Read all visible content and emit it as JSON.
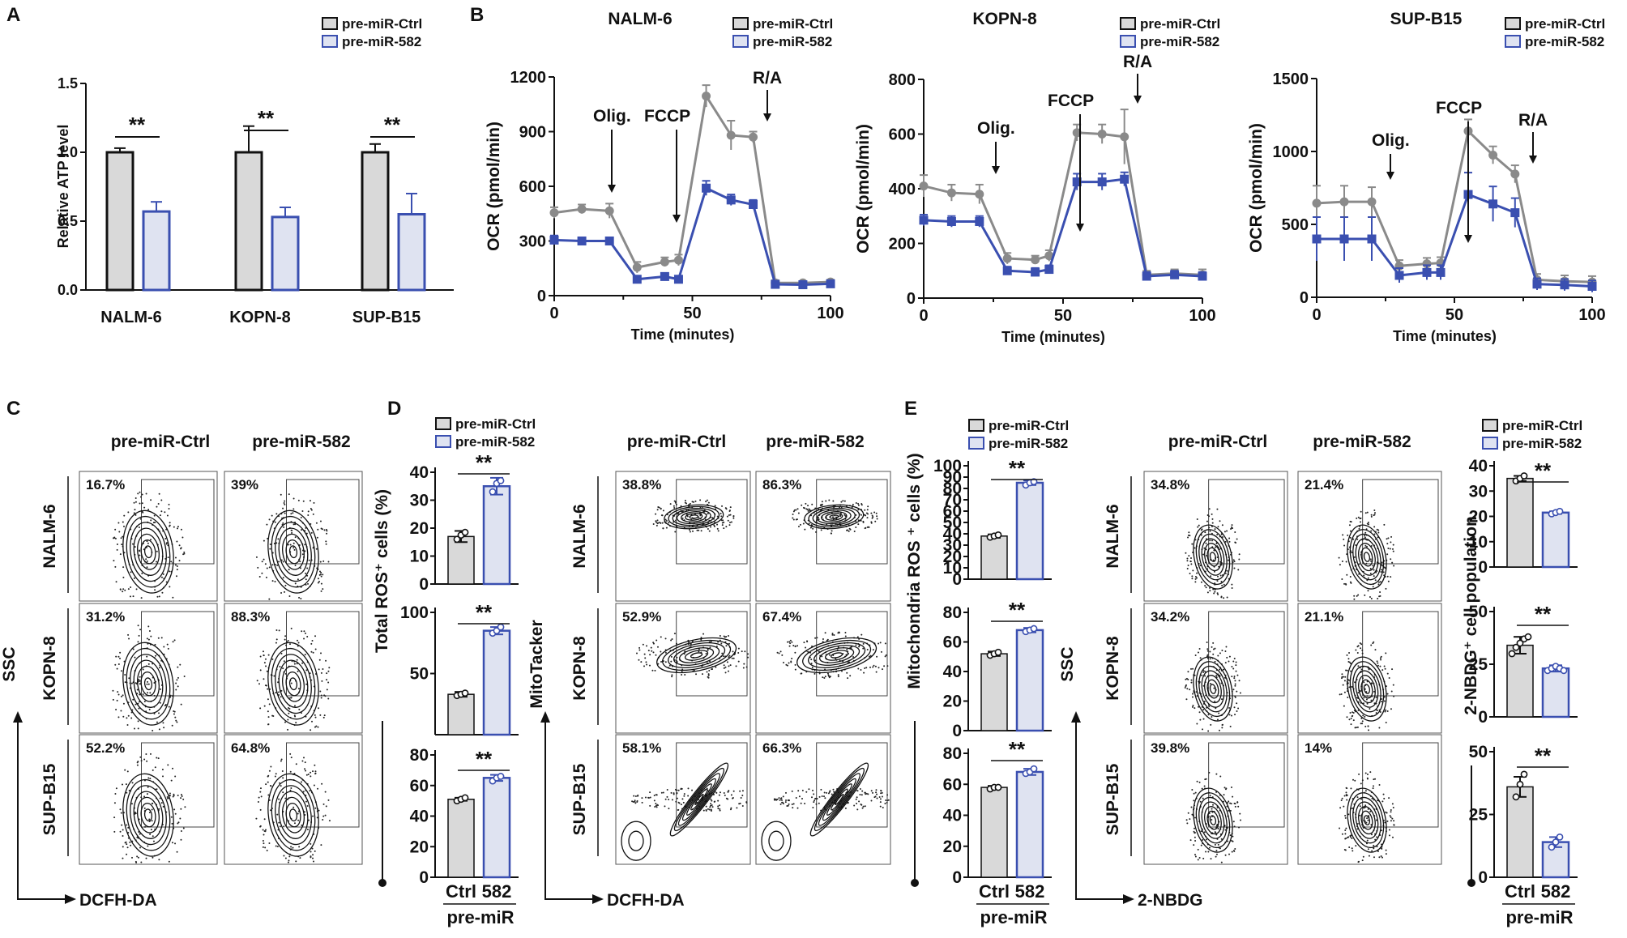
{
  "colors": {
    "ctrl_fill": "#d9d9d9",
    "ctrl_line": "#8a8a8a",
    "ctrl_edge": "#111111",
    "mir_line": "#3a4fb0",
    "mir_fill": "#dfe3f1"
  },
  "legend": {
    "ctrl": "pre-miR-Ctrl",
    "mir": "pre-miR-582"
  },
  "panels": {
    "a": {
      "letter": "A"
    },
    "b": {
      "letter": "B"
    },
    "c": {
      "letter": "C"
    },
    "d": {
      "letter": "D"
    },
    "e": {
      "letter": "E"
    }
  },
  "common": {
    "sig": "**",
    "ctrl": "Ctrl",
    "mir": "582",
    "premir": "pre-miR"
  },
  "flow": {
    "col_ctrl": "pre-miR-Ctrl",
    "col_mir": "pre-miR-582",
    "rows": [
      "NALM-6",
      "KOPN-8",
      "SUP-B15"
    ],
    "ssc": "SSC",
    "mitotracker": "MitoTacker",
    "dcfh": "DCFH-DA",
    "nbdg": "2-NBDG",
    "c_pct": [
      [
        "16.7%",
        "39%"
      ],
      [
        "31.2%",
        "88.3%"
      ],
      [
        "52.2%",
        "64.8%"
      ]
    ],
    "d_pct": [
      [
        "38.8%",
        "86.3%"
      ],
      [
        "52.9%",
        "67.4%"
      ],
      [
        "58.1%",
        "66.3%"
      ]
    ],
    "e_pct": [
      [
        "34.8%",
        "21.4%"
      ],
      [
        "34.2%",
        "21.1%"
      ],
      [
        "39.8%",
        "14%"
      ]
    ]
  },
  "chart_data": [
    {
      "type": "bar",
      "panel": "A",
      "categories": [
        "NALM-6",
        "KOPN-8",
        "SUP-B15"
      ],
      "series": [
        {
          "name": "pre-miR-Ctrl",
          "values": [
            1.0,
            1.0,
            1.0
          ],
          "errors": [
            0.03,
            0.19,
            0.06
          ]
        },
        {
          "name": "pre-miR-582",
          "values": [
            0.57,
            0.53,
            0.55
          ],
          "errors": [
            0.07,
            0.07,
            0.15
          ]
        }
      ],
      "ylabel": "Relative ATP level",
      "ylim": [
        0,
        1.5
      ],
      "yticks": [
        "0.0",
        "0.5",
        "1.0",
        "1.5"
      ],
      "significance": [
        "**",
        "**",
        "**"
      ]
    },
    {
      "type": "line",
      "panel": "B",
      "title": "NALM-6",
      "x": [
        0,
        10,
        20,
        30,
        40,
        45,
        55,
        64,
        72,
        80,
        90,
        100
      ],
      "series": [
        {
          "name": "pre-miR-Ctrl",
          "values": [
            455,
            475,
            465,
            155,
            185,
            195,
            1095,
            880,
            870,
            70,
            70,
            75
          ],
          "errors": [
            30,
            25,
            40,
            30,
            25,
            30,
            60,
            80,
            30,
            15,
            10,
            12
          ]
        },
        {
          "name": "pre-miR-582",
          "values": [
            305,
            300,
            300,
            90,
            105,
            90,
            590,
            525,
            500,
            62,
            60,
            65
          ],
          "errors": [
            25,
            20,
            20,
            15,
            15,
            15,
            40,
            30,
            25,
            10,
            10,
            10
          ]
        }
      ],
      "xlabel": "Time (minutes)",
      "ylabel": "OCR (pmol/min)",
      "ylim": [
        0,
        1200
      ],
      "xlim": [
        0,
        100
      ],
      "yticks": [
        "0",
        "300",
        "600",
        "900",
        "1200"
      ],
      "xticks": [
        "0",
        "50",
        "100"
      ],
      "annotations": [
        "Olig.",
        "FCCP",
        "R/A"
      ]
    },
    {
      "type": "line",
      "panel": "B",
      "title": "KOPN-8",
      "x": [
        0,
        10,
        20,
        30,
        40,
        45,
        55,
        64,
        72,
        80,
        90,
        100
      ],
      "series": [
        {
          "name": "pre-miR-Ctrl",
          "values": [
            410,
            385,
            380,
            145,
            140,
            155,
            605,
            600,
            590,
            85,
            90,
            85
          ],
          "errors": [
            40,
            30,
            35,
            20,
            15,
            20,
            30,
            35,
            100,
            15,
            15,
            20
          ]
        },
        {
          "name": "pre-miR-582",
          "values": [
            285,
            280,
            280,
            100,
            95,
            105,
            425,
            425,
            435,
            80,
            85,
            80
          ],
          "errors": [
            20,
            20,
            20,
            15,
            15,
            15,
            30,
            30,
            25,
            15,
            15,
            15
          ]
        }
      ],
      "xlabel": "Time (minutes)",
      "ylabel": "OCR (pmol/min)",
      "ylim": [
        0,
        800
      ],
      "xlim": [
        0,
        100
      ],
      "yticks": [
        "0",
        "200",
        "400",
        "600",
        "800"
      ],
      "xticks": [
        "0",
        "50",
        "100"
      ],
      "annotations": [
        "Olig.",
        "FCCP",
        "R/A"
      ]
    },
    {
      "type": "line",
      "panel": "B",
      "title": "SUP-B15",
      "x": [
        0,
        10,
        20,
        30,
        40,
        45,
        55,
        64,
        72,
        80,
        90,
        100
      ],
      "series": [
        {
          "name": "pre-miR-Ctrl",
          "values": [
            645,
            655,
            655,
            215,
            230,
            235,
            1140,
            975,
            845,
            120,
            110,
            105
          ],
          "errors": [
            120,
            110,
            100,
            40,
            40,
            40,
            80,
            60,
            60,
            40,
            40,
            40
          ]
        },
        {
          "name": "pre-miR-582",
          "values": [
            400,
            400,
            400,
            150,
            170,
            170,
            705,
            640,
            580,
            90,
            85,
            75
          ],
          "errors": [
            150,
            150,
            150,
            50,
            50,
            50,
            150,
            120,
            100,
            40,
            40,
            40
          ]
        }
      ],
      "xlabel": "Time (minutes)",
      "ylabel": "OCR (pmol/min)",
      "ylim": [
        0,
        1500
      ],
      "xlim": [
        0,
        100
      ],
      "yticks": [
        "0",
        "500",
        "1000",
        "1500"
      ],
      "xticks": [
        "0",
        "50",
        "100"
      ],
      "annotations": [
        "Olig.",
        "FCCP",
        "R/A"
      ]
    },
    {
      "type": "bar",
      "panel": "D",
      "ylabel": "Total ROS⁺ cells (%)",
      "categories": [
        "Ctrl",
        "582"
      ],
      "xlabel": "pre-miR",
      "subplots": [
        {
          "row": "NALM-6",
          "ylim": [
            0,
            40
          ],
          "yticks": [
            "0",
            "10",
            "20",
            "30",
            "40"
          ],
          "values": [
            17,
            35
          ],
          "errors": [
            2,
            3
          ],
          "points": [
            [
              16,
              17.5,
              18.5
            ],
            [
              33,
              36,
              37
            ]
          ],
          "sig": "**"
        },
        {
          "row": "KOPN-8",
          "ylim": [
            0,
            100
          ],
          "yticks": [
            "50",
            "100"
          ],
          "values": [
            33,
            85
          ],
          "errors": [
            2,
            3
          ],
          "points": [
            [
              32,
              33,
              34
            ],
            [
              83,
              85,
              88
            ]
          ],
          "sig": "**"
        },
        {
          "row": "SUP-B15",
          "ylim": [
            0,
            80
          ],
          "yticks": [
            "0",
            "20",
            "40",
            "60",
            "80"
          ],
          "values": [
            51,
            65
          ],
          "errors": [
            1,
            2
          ],
          "points": [
            [
              50,
              51,
              52
            ],
            [
              63,
              65,
              66
            ]
          ],
          "sig": "**"
        }
      ]
    },
    {
      "type": "bar",
      "panel": "E",
      "ylabel": "Mitochondria ROS ⁺ cells (%)",
      "categories": [
        "Ctrl",
        "582"
      ],
      "xlabel": "pre-miR",
      "subplots": [
        {
          "row": "NALM-6",
          "ylim": [
            0,
            100
          ],
          "yticks": [
            "0",
            "10",
            "20",
            "30",
            "40",
            "50",
            "60",
            "70",
            "80",
            "90",
            "100"
          ],
          "values": [
            38,
            85
          ],
          "errors": [
            1.5,
            2
          ],
          "points": [
            [
              37,
              38,
              39
            ],
            [
              83,
              85,
              86
            ]
          ],
          "sig": "**"
        },
        {
          "row": "KOPN-8",
          "ylim": [
            0,
            80
          ],
          "yticks": [
            "0",
            "20",
            "40",
            "60",
            "80"
          ],
          "values": [
            52,
            68
          ],
          "errors": [
            1.5,
            1.5
          ],
          "points": [
            [
              51,
              52,
              53
            ],
            [
              67,
              68,
              69
            ]
          ],
          "sig": "**"
        },
        {
          "row": "SUP-B15",
          "ylim": [
            0,
            80
          ],
          "yticks": [
            "0",
            "20",
            "40",
            "60",
            "80"
          ],
          "values": [
            58,
            68
          ],
          "errors": [
            1,
            2
          ],
          "points": [
            [
              57,
              58,
              58
            ],
            [
              67,
              68,
              70
            ]
          ],
          "sig": "**"
        }
      ]
    },
    {
      "type": "bar",
      "panel": "E",
      "ylabel": "2-NBDG⁺ cell population",
      "categories": [
        "Ctrl",
        "582"
      ],
      "xlabel": "pre-miR",
      "subplots": [
        {
          "row": "NALM-6",
          "ylim": [
            0,
            40
          ],
          "yticks": [
            "0",
            "10",
            "20",
            "30",
            "40"
          ],
          "values": [
            35,
            21.5
          ],
          "errors": [
            1,
            0.5
          ],
          "points": [
            [
              34,
              35,
              36
            ],
            [
              21,
              21.5,
              22
            ]
          ],
          "sig": "**"
        },
        {
          "row": "KOPN-8",
          "ylim": [
            0,
            50
          ],
          "yticks": [
            "0",
            "25",
            "50"
          ],
          "values": [
            34,
            23
          ],
          "errors": [
            4,
            1.5
          ],
          "points": [
            [
              30,
              33,
              35,
              37,
              38
            ],
            [
              22,
              23,
              24,
              23,
              22
            ]
          ],
          "sig": "**"
        },
        {
          "row": "SUP-B15",
          "ylim": [
            0,
            50
          ],
          "yticks": [
            "0",
            "25",
            "50"
          ],
          "values": [
            36,
            14
          ],
          "errors": [
            4,
            2
          ],
          "points": [
            [
              32,
              37,
              41
            ],
            [
              12,
              14,
              16
            ]
          ],
          "sig": "**"
        }
      ]
    }
  ]
}
